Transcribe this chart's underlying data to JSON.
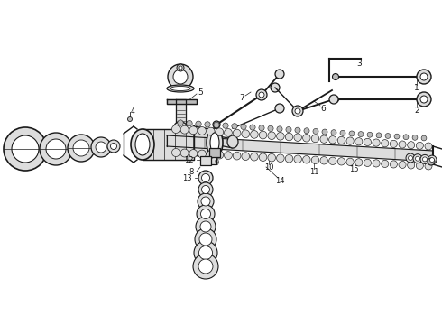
{
  "bg_color": "#ffffff",
  "ec": "#1a1a1a",
  "fc_gray": "#bbbbbb",
  "fc_light": "#dddddd",
  "fc_white": "#ffffff",
  "fc_dark": "#555555",
  "fig_width": 4.9,
  "fig_height": 3.6,
  "dpi": 100,
  "xlim": [
    0,
    490
  ],
  "ylim": [
    0,
    360
  ]
}
